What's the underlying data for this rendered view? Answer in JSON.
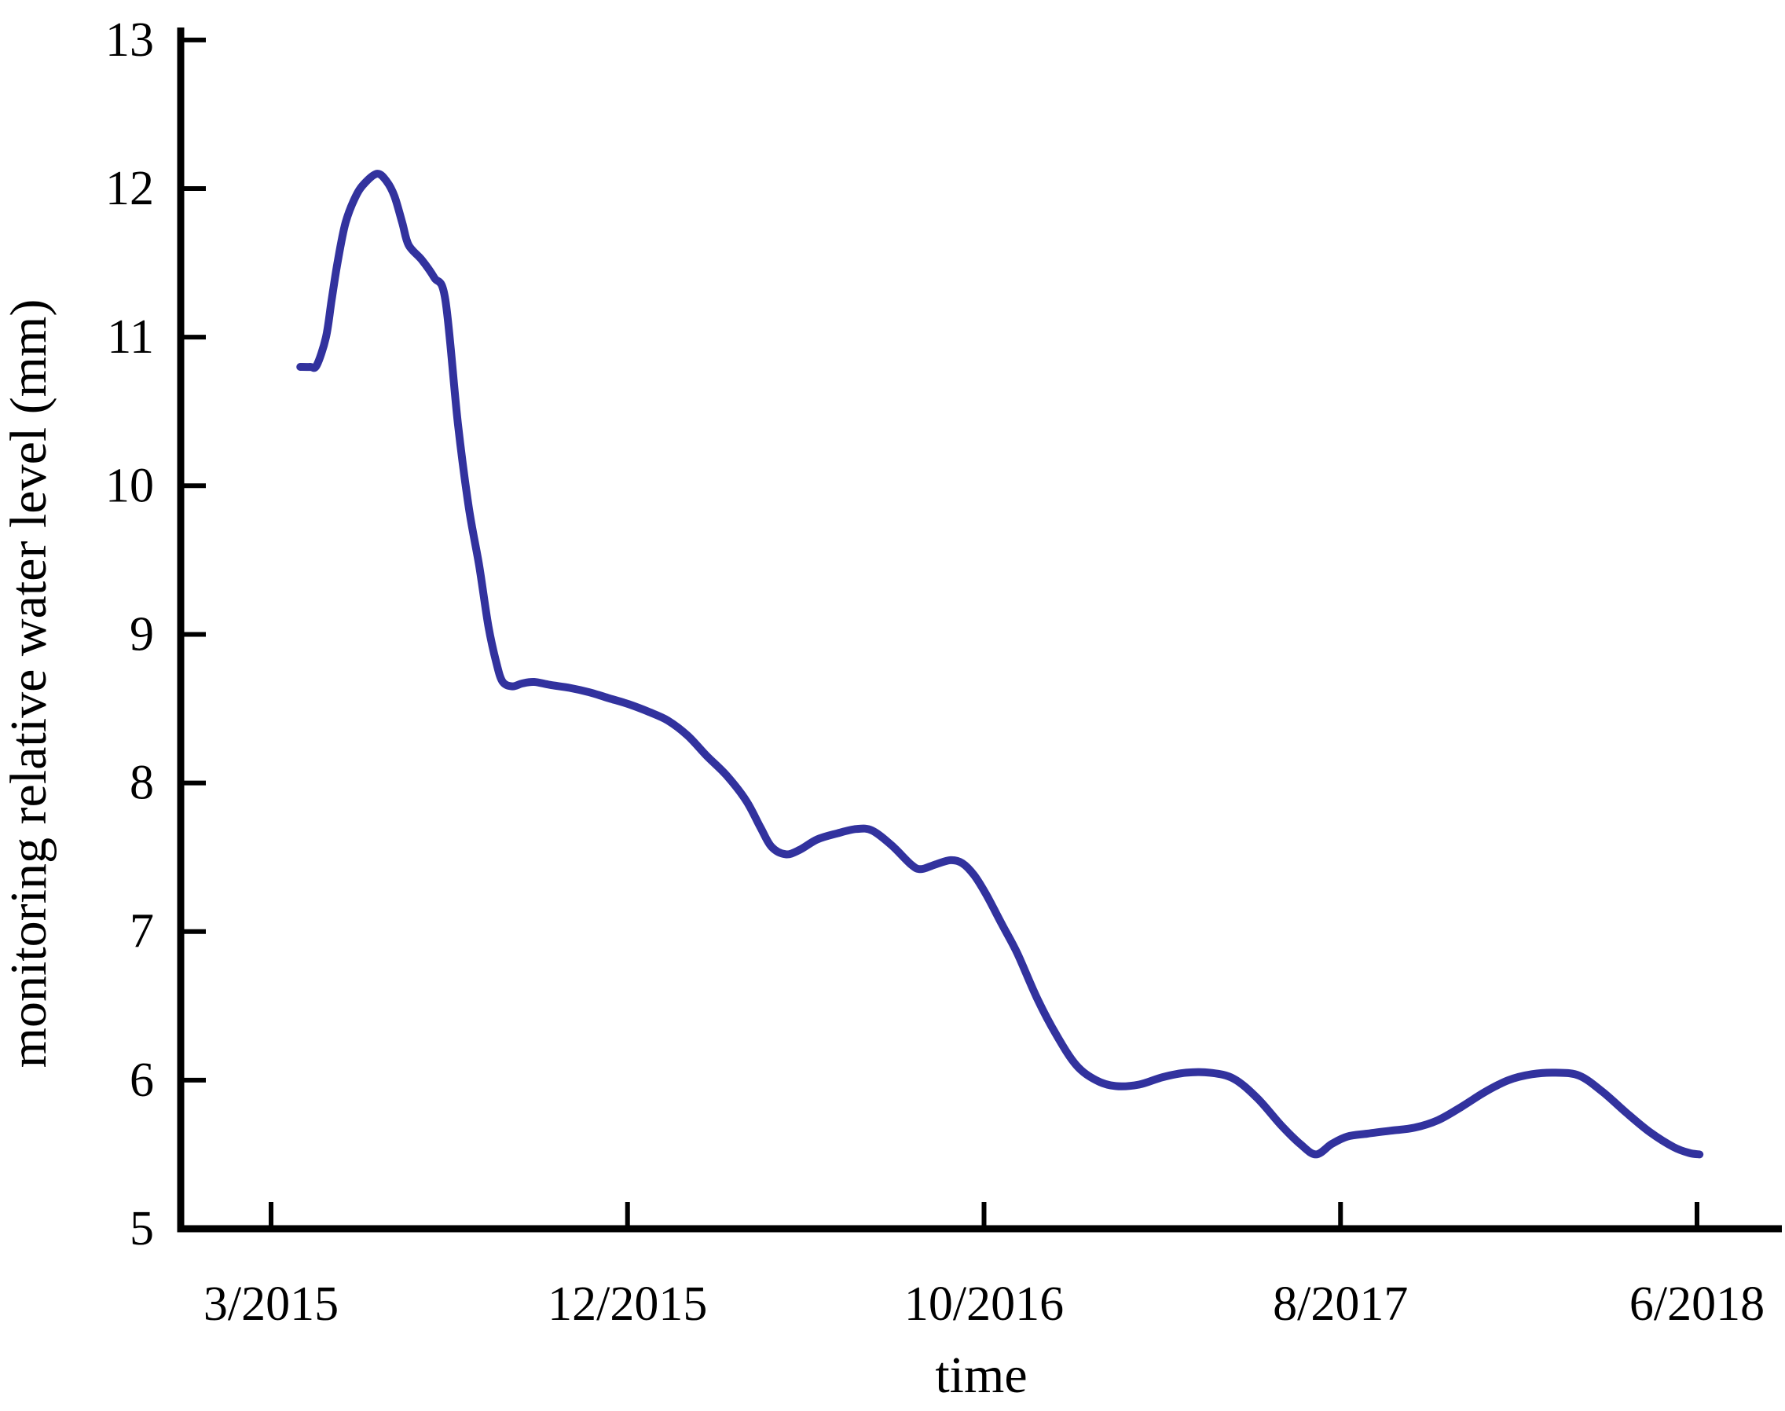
{
  "figure": {
    "background": "#ffffff",
    "line_color": "#32329e",
    "axis_color": "#000000",
    "text_color": "#000000"
  },
  "chart_data": {
    "type": "line",
    "title": "",
    "xlabel": "time",
    "ylabel": "monitoring relative water level (mm)",
    "x_tick_labels": [
      "3/2015",
      "12/2015",
      "10/2016",
      "8/2017",
      "6/2018"
    ],
    "y_tick_labels": [
      "13",
      "12",
      "11",
      "10",
      "9",
      "8",
      "7",
      "6",
      "5"
    ],
    "ylim": [
      5,
      13
    ],
    "x_unit": "tick-index (0 = 3/2015 tick, 4 = 6/2018 tick, ticks evenly spaced)",
    "legend": "none",
    "grid": "off",
    "series": [
      {
        "name": "monitoring relative water level",
        "points": [
          [
            0.082,
            10.8
          ],
          [
            0.11,
            10.8
          ],
          [
            0.128,
            10.81
          ],
          [
            0.154,
            11.0
          ],
          [
            0.17,
            11.25
          ],
          [
            0.187,
            11.51
          ],
          [
            0.209,
            11.77
          ],
          [
            0.238,
            11.95
          ],
          [
            0.264,
            12.04
          ],
          [
            0.298,
            12.1
          ],
          [
            0.324,
            12.05
          ],
          [
            0.346,
            11.95
          ],
          [
            0.368,
            11.77
          ],
          [
            0.386,
            11.62
          ],
          [
            0.423,
            11.52
          ],
          [
            0.458,
            11.4
          ],
          [
            0.489,
            11.25
          ],
          [
            0.524,
            10.42
          ],
          [
            0.555,
            9.85
          ],
          [
            0.584,
            9.46
          ],
          [
            0.61,
            9.05
          ],
          [
            0.633,
            8.8
          ],
          [
            0.65,
            8.68
          ],
          [
            0.677,
            8.65
          ],
          [
            0.705,
            8.67
          ],
          [
            0.738,
            8.68
          ],
          [
            0.782,
            8.66
          ],
          [
            0.837,
            8.64
          ],
          [
            0.893,
            8.61
          ],
          [
            0.948,
            8.57
          ],
          [
            1.003,
            8.53
          ],
          [
            1.058,
            8.48
          ],
          [
            1.113,
            8.42
          ],
          [
            1.168,
            8.32
          ],
          [
            1.223,
            8.18
          ],
          [
            1.278,
            8.05
          ],
          [
            1.333,
            7.88
          ],
          [
            1.373,
            7.7
          ],
          [
            1.404,
            7.57
          ],
          [
            1.444,
            7.52
          ],
          [
            1.483,
            7.55
          ],
          [
            1.532,
            7.62
          ],
          [
            1.587,
            7.66
          ],
          [
            1.642,
            7.69
          ],
          [
            1.686,
            7.68
          ],
          [
            1.741,
            7.58
          ],
          [
            1.796,
            7.45
          ],
          [
            1.823,
            7.42
          ],
          [
            1.862,
            7.45
          ],
          [
            1.906,
            7.48
          ],
          [
            1.939,
            7.46
          ],
          [
            1.972,
            7.38
          ],
          [
            2.006,
            7.25
          ],
          [
            2.05,
            7.05
          ],
          [
            2.094,
            6.85
          ],
          [
            2.149,
            6.55
          ],
          [
            2.204,
            6.3
          ],
          [
            2.259,
            6.1
          ],
          [
            2.314,
            6.0
          ],
          [
            2.369,
            5.96
          ],
          [
            2.435,
            5.97
          ],
          [
            2.501,
            6.02
          ],
          [
            2.567,
            6.05
          ],
          [
            2.634,
            6.05
          ],
          [
            2.7,
            6.01
          ],
          [
            2.766,
            5.88
          ],
          [
            2.832,
            5.7
          ],
          [
            2.887,
            5.57
          ],
          [
            2.931,
            5.5
          ],
          [
            2.975,
            5.57
          ],
          [
            3.019,
            5.62
          ],
          [
            3.075,
            5.64
          ],
          [
            3.141,
            5.66
          ],
          [
            3.207,
            5.68
          ],
          [
            3.273,
            5.73
          ],
          [
            3.339,
            5.82
          ],
          [
            3.405,
            5.92
          ],
          [
            3.471,
            6.0
          ],
          [
            3.537,
            6.04
          ],
          [
            3.604,
            6.05
          ],
          [
            3.67,
            6.03
          ],
          [
            3.736,
            5.92
          ],
          [
            3.802,
            5.78
          ],
          [
            3.868,
            5.65
          ],
          [
            3.934,
            5.55
          ],
          [
            3.978,
            5.51
          ],
          [
            4.007,
            5.5
          ]
        ]
      }
    ]
  }
}
